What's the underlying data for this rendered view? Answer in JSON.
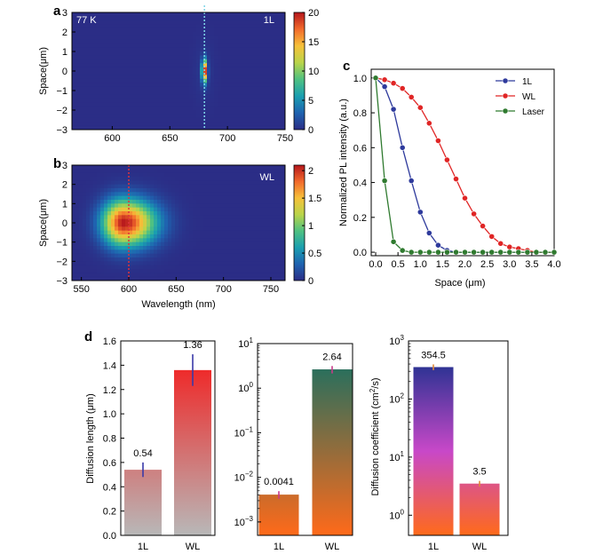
{
  "panels": {
    "a": "a",
    "b": "b",
    "c": "c",
    "d": "d"
  },
  "chart_data": [
    {
      "id": "a",
      "type": "heatmap",
      "annotation_left": "77 K",
      "annotation_right": "1L",
      "ylabel": "Space(μm)",
      "xlabel": "",
      "xlim": [
        565,
        750
      ],
      "ylim": [
        -3,
        3
      ],
      "xticks": [
        "600",
        "650",
        "700",
        "750"
      ],
      "yticks": [
        "3",
        "2",
        "1",
        "0",
        "−1",
        "−2",
        "−3"
      ],
      "colorbar_ticks": [
        "20",
        "15",
        "10",
        "5",
        "0"
      ],
      "colorbar_range": [
        0,
        20
      ],
      "peak": {
        "wavelength": 680,
        "space": 0,
        "value": 20
      },
      "dashed_line_x": 680,
      "dashed_line_color": "#7fd6e8",
      "colormap": [
        "#2b2d86",
        "#1f63b0",
        "#1a9fb0",
        "#4fc182",
        "#b9d44a",
        "#f6c13a",
        "#f26a2c",
        "#b5161c"
      ]
    },
    {
      "id": "b",
      "type": "heatmap",
      "annotation_right": "WL",
      "ylabel": "Space(μm)",
      "xlabel": "Wavelength (nm)",
      "xlim": [
        540,
        765
      ],
      "ylim": [
        -3,
        3
      ],
      "xticks": [
        "550",
        "600",
        "650",
        "700",
        "750"
      ],
      "yticks": [
        "3",
        "2",
        "1",
        "0",
        "−1",
        "−2",
        "−3"
      ],
      "colorbar_ticks": [
        "2",
        "1.5",
        "1",
        "0.5",
        "0"
      ],
      "colorbar_range": [
        0,
        2.1
      ],
      "peak": {
        "wavelength": 590,
        "space": 0,
        "value": 2.1
      },
      "dashed_line_x": 600,
      "dashed_line_color": "#e0333a",
      "colormap": [
        "#2b2d86",
        "#1f63b0",
        "#1a9fb0",
        "#4fc182",
        "#b9d44a",
        "#f6c13a",
        "#f26a2c",
        "#b5161c"
      ]
    },
    {
      "id": "c",
      "type": "line",
      "xlabel": "Space (μm)",
      "ylabel": "Normalized PL intensity (a.u.)",
      "xlim": [
        -0.1,
        4.0
      ],
      "ylim": [
        -0.02,
        1.05
      ],
      "xticks": [
        "0.0",
        "0.5",
        "1.0",
        "1.5",
        "2.0",
        "2.5",
        "3.0",
        "3.5",
        "4.0"
      ],
      "yticks": [
        "1.0",
        "0.8",
        "0.6",
        "0.4",
        "0.2",
        "0.0"
      ],
      "legend": "top-right",
      "x": [
        0.0,
        0.2,
        0.4,
        0.6,
        0.8,
        1.0,
        1.2,
        1.4,
        1.6,
        1.8,
        2.0,
        2.2,
        2.4,
        2.6,
        2.8,
        3.0,
        3.2,
        3.4,
        3.6,
        3.8,
        4.0
      ],
      "series": [
        {
          "name": "1L",
          "color": "#2e3a9c",
          "values": [
            1.0,
            0.95,
            0.82,
            0.6,
            0.41,
            0.23,
            0.11,
            0.04,
            0.01,
            0.0,
            0.0,
            0.0,
            0.0,
            0.0,
            0.0,
            0.0,
            0.0,
            0.0,
            0.0,
            0.0,
            0.0
          ]
        },
        {
          "name": "WL",
          "color": "#e02525",
          "values": [
            1.0,
            0.99,
            0.97,
            0.94,
            0.89,
            0.83,
            0.74,
            0.64,
            0.53,
            0.42,
            0.31,
            0.22,
            0.15,
            0.09,
            0.05,
            0.03,
            0.02,
            0.01,
            0.0,
            0.0,
            0.0
          ]
        },
        {
          "name": "Laser",
          "color": "#2f7a2f",
          "values": [
            1.0,
            0.41,
            0.06,
            0.01,
            0.0,
            0.0,
            0.0,
            0.0,
            0.0,
            0.0,
            0.0,
            0.0,
            0.0,
            0.0,
            0.0,
            0.0,
            0.0,
            0.0,
            0.0,
            0.0,
            0.0
          ]
        }
      ]
    },
    {
      "id": "d1",
      "type": "bar",
      "ylabel": "Diffusion length (μm)",
      "categories": [
        "1L",
        "WL"
      ],
      "values": [
        0.54,
        1.36
      ],
      "errors": [
        0.06,
        0.13
      ],
      "labels": [
        "0.54",
        "1.36"
      ],
      "ylim": [
        0,
        1.6
      ],
      "yticks": [
        "1.6",
        "1.4",
        "1.2",
        "1.0",
        "0.8",
        "0.6",
        "0.4",
        "0.2",
        "0.0"
      ],
      "gradient": [
        "#ee2b2b",
        "#b8b8b8"
      ],
      "error_color": "#3a3aa8"
    },
    {
      "id": "d2",
      "type": "bar",
      "scale": "log",
      "ylabel": "",
      "categories": [
        "1L",
        "WL"
      ],
      "values": [
        0.0041,
        2.64
      ],
      "errors": [
        0.0008,
        0.5
      ],
      "labels": [
        "0.0041",
        "2.64"
      ],
      "ylim": [
        0.0005,
        10
      ],
      "yticks": [
        {
          "base": "10",
          "exp": "1"
        },
        {
          "base": "10",
          "exp": "0"
        },
        {
          "base": "10",
          "exp": "−1"
        },
        {
          "base": "10",
          "exp": "−2"
        },
        {
          "base": "10",
          "exp": "−3"
        }
      ],
      "gradient": [
        "#2b6f5c",
        "#ff6a1a"
      ],
      "error_color": "#c83a8a"
    },
    {
      "id": "d3",
      "type": "bar",
      "scale": "log",
      "ylabel": "Diffusion coefficient (cm²/s)",
      "categories": [
        "1L",
        "WL"
      ],
      "values": [
        354.5,
        3.5
      ],
      "errors": [
        40,
        0.4
      ],
      "labels": [
        "354.5",
        "3.5"
      ],
      "ylim": [
        0.45,
        1000
      ],
      "yticks": [
        {
          "base": "10",
          "exp": "3"
        },
        {
          "base": "10",
          "exp": "2"
        },
        {
          "base": "10",
          "exp": "1"
        },
        {
          "base": "10",
          "exp": "0"
        }
      ],
      "gradient": [
        "#2f3394",
        "#c848c8",
        "#ff6a1a"
      ],
      "error_color": "#e08a3a"
    }
  ]
}
